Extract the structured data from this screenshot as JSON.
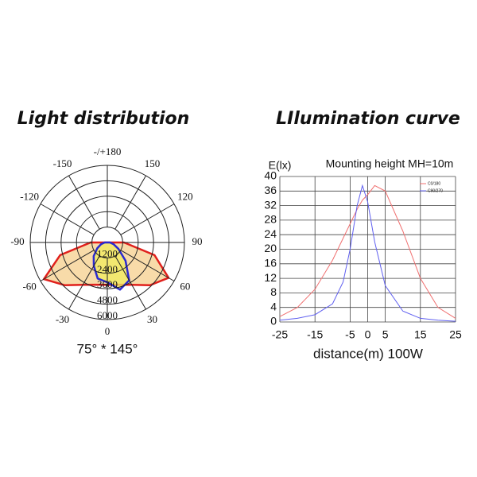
{
  "chart_data": [
    {
      "type": "polar",
      "title": "Light distribution",
      "caption": "75° * 145°",
      "rlim": [
        0,
        6000
      ],
      "rticks": [
        1200,
        2400,
        3600,
        4800,
        6000
      ],
      "thetaticks": [
        0,
        30,
        60,
        90,
        120,
        150,
        {
          "value": 180,
          "label": "-/+180"
        },
        -150,
        -120,
        -90,
        -60,
        -30
      ],
      "theta": [
        -90,
        -75,
        -60,
        -45,
        -30,
        -15,
        0,
        15,
        30,
        45,
        60,
        75,
        90
      ],
      "series": [
        {
          "name": "C0/180",
          "color": "#e0201c",
          "fill": "#f5cf8c",
          "values": [
            1300,
            3800,
            5700,
            4700,
            3800,
            3400,
            3300,
            3400,
            3800,
            4700,
            5500,
            3800,
            1300
          ]
        },
        {
          "name": "C90/270",
          "color": "#2a2ad0",
          "fill": "#f2ec5e",
          "values": [
            200,
            500,
            900,
            1500,
            2100,
            2900,
            3100,
            3800,
            3400,
            2000,
            1000,
            500,
            200
          ]
        }
      ]
    },
    {
      "type": "line",
      "title": "LIlumination curve",
      "subtitle": "Mounting height  MH=10m",
      "ylabel": "E(lx)",
      "xlabel": "distance(m) 100W",
      "xlim": [
        -25,
        25
      ],
      "xticks": [
        -25,
        -15,
        -5,
        0,
        5,
        15,
        25
      ],
      "ylim": [
        0,
        40
      ],
      "yticks": [
        0,
        4,
        8,
        12,
        16,
        20,
        24,
        28,
        32,
        36,
        40
      ],
      "grid": true,
      "x": [
        -25,
        -20,
        -15,
        -10,
        -7,
        -5,
        -3,
        -1.5,
        0,
        2,
        5,
        10,
        15,
        20,
        25
      ],
      "series": [
        {
          "name": "C0/180",
          "color": "#f07070",
          "values": [
            1.5,
            4,
            9,
            17,
            23,
            27,
            31,
            33.5,
            35,
            37.5,
            36,
            25,
            12,
            4,
            1
          ]
        },
        {
          "name": "C90/270",
          "color": "#6060f0",
          "values": [
            0.5,
            1,
            2,
            5,
            11,
            20,
            32,
            37.5,
            33,
            22,
            10,
            3,
            1,
            0.5,
            0.2
          ]
        }
      ]
    }
  ]
}
